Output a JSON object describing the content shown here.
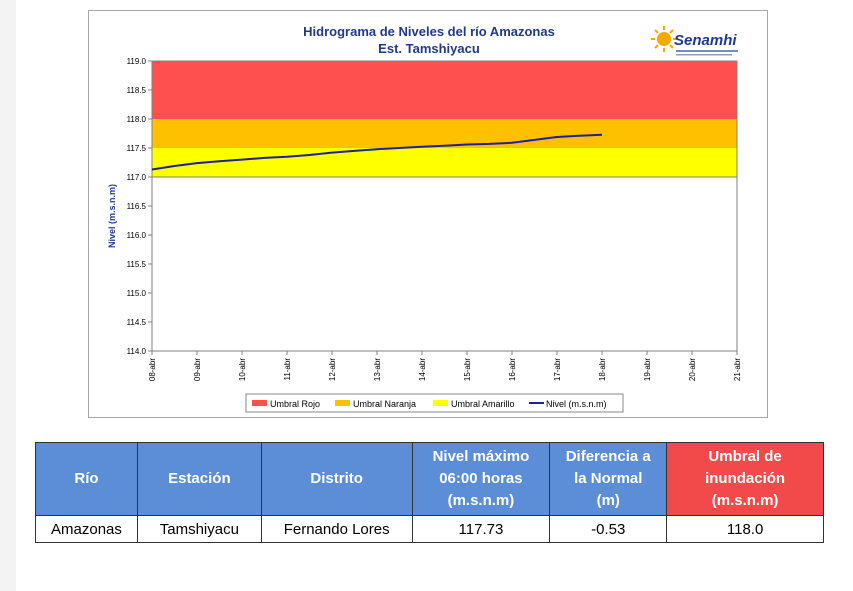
{
  "chart_data": {
    "type": "line",
    "title": "Hidrograma de Niveles del río Amazonas",
    "subtitle": "Est. Tamshiyacu",
    "ylabel": "Nivel (m.s.n.m)",
    "xlabel": "",
    "ylim": [
      114.0,
      119.0
    ],
    "yticks": [
      "114.0",
      "114.5",
      "115.0",
      "115.5",
      "116.0",
      "116.5",
      "117.0",
      "117.5",
      "118.0",
      "118.5",
      "119.0"
    ],
    "categories": [
      "08-abr",
      "09-abr",
      "10-abr",
      "11-abr",
      "12-abr",
      "13-abr",
      "14-abr",
      "15-abr",
      "16-abr",
      "17-abr",
      "18-abr",
      "19-abr",
      "20-abr",
      "21-abr"
    ],
    "bands": [
      {
        "name": "Umbral Rojo",
        "from": 118.0,
        "to": 119.0,
        "color": "#ff5050"
      },
      {
        "name": "Umbral Naranja",
        "from": 117.5,
        "to": 118.0,
        "color": "#ffc000"
      },
      {
        "name": "Umbral Amarillo",
        "from": 117.0,
        "to": 117.5,
        "color": "#ffff00"
      }
    ],
    "series": [
      {
        "name": "Nivel (m.s.n.m)",
        "color": "#1f1fa0",
        "x": [
          0,
          0.5,
          1,
          1.5,
          2,
          2.5,
          3,
          3.5,
          4,
          4.5,
          5,
          5.5,
          6,
          6.5,
          7,
          7.5,
          8,
          8.5,
          9,
          9.5,
          10
        ],
        "values": [
          117.13,
          117.19,
          117.24,
          117.27,
          117.3,
          117.33,
          117.35,
          117.38,
          117.42,
          117.45,
          117.48,
          117.5,
          117.52,
          117.54,
          117.56,
          117.57,
          117.59,
          117.64,
          117.69,
          117.71,
          117.73
        ]
      }
    ],
    "legend_position": "bottom",
    "grid": false
  },
  "logo": {
    "name": "Senamhi",
    "icon": "sun-icon"
  },
  "table": {
    "headers": [
      "Río",
      "Estación",
      "Distrito",
      "Nivel máximo\n06:00 horas\n(m.s.n.m)",
      "Diferencia a\nla Normal\n(m)",
      "Umbral de\ninundación\n(m.s.n.m)"
    ],
    "row": [
      "Amazonas",
      "Tamshiyacu",
      "Fernando Lores",
      "117.73",
      "-0.53",
      "118.0"
    ]
  }
}
